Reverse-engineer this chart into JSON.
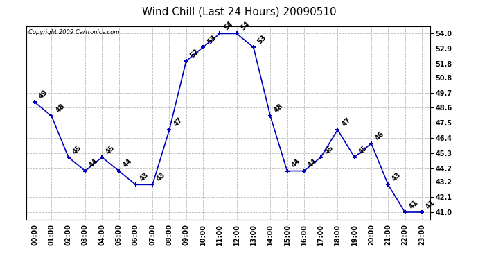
{
  "title": "Wind Chill (Last 24 Hours) 20090510",
  "copyright": "Copyright 2009 Cartronics.com",
  "hours": [
    "00:00",
    "01:00",
    "02:00",
    "03:00",
    "04:00",
    "05:00",
    "06:00",
    "07:00",
    "08:00",
    "09:00",
    "10:00",
    "11:00",
    "12:00",
    "13:00",
    "14:00",
    "15:00",
    "16:00",
    "17:00",
    "18:00",
    "19:00",
    "20:00",
    "21:00",
    "22:00",
    "23:00"
  ],
  "values": [
    49,
    48,
    45,
    44,
    45,
    44,
    43,
    43,
    47,
    52,
    53,
    54,
    54,
    53,
    48,
    44,
    44,
    45,
    47,
    45,
    46,
    43,
    41,
    41
  ],
  "line_color": "#0000bb",
  "marker_color": "#0000bb",
  "bg_color": "#ffffff",
  "grid_color": "#bbbbbb",
  "yticks": [
    41.0,
    42.1,
    43.2,
    44.2,
    45.3,
    46.4,
    47.5,
    48.6,
    49.7,
    50.8,
    51.8,
    52.9,
    54.0
  ],
  "ylim": [
    40.45,
    54.55
  ],
  "title_fontsize": 11,
  "label_fontsize": 7,
  "annotation_fontsize": 7,
  "copyright_fontsize": 6
}
